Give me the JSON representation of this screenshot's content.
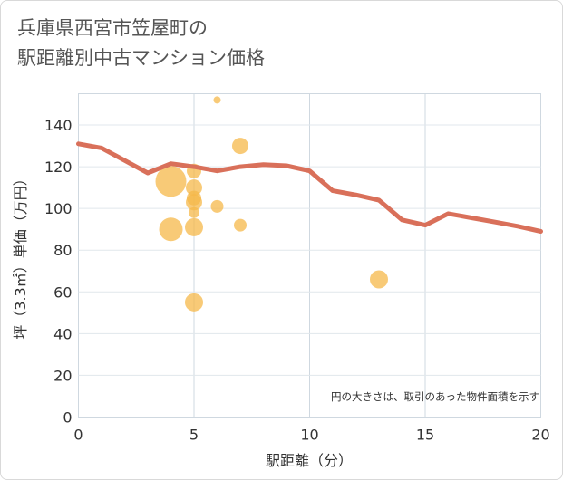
{
  "title_line1": "兵庫県西宮市笠屋町の",
  "title_line2": "駅距離別中古マンション価格",
  "chart_data": {
    "type": "scatter",
    "title": "兵庫県西宮市笠屋町の駅距離別中古マンション価格",
    "xlabel": "駅距離（分）",
    "ylabel": "坪（3.3㎡）単価（万円）",
    "xlim": [
      0,
      20
    ],
    "ylim": [
      0,
      155
    ],
    "xticks": [
      0,
      5,
      10,
      15,
      20
    ],
    "yticks": [
      0,
      20,
      40,
      60,
      80,
      100,
      120,
      140
    ],
    "grid": true,
    "note": "円の大きさは、取引のあった物件面積を示す",
    "colors": {
      "bubble": "#f5b84a",
      "line": "#d9705a"
    },
    "points": [
      {
        "x": 6,
        "y": 152,
        "size": 4
      },
      {
        "x": 7,
        "y": 130,
        "size": 9
      },
      {
        "x": 5,
        "y": 118,
        "size": 8
      },
      {
        "x": 4,
        "y": 113,
        "size": 17
      },
      {
        "x": 5,
        "y": 110,
        "size": 9
      },
      {
        "x": 5,
        "y": 105,
        "size": 8
      },
      {
        "x": 5,
        "y": 103,
        "size": 9
      },
      {
        "x": 6,
        "y": 101,
        "size": 7
      },
      {
        "x": 5,
        "y": 98,
        "size": 6
      },
      {
        "x": 7,
        "y": 92,
        "size": 7
      },
      {
        "x": 5,
        "y": 91,
        "size": 10
      },
      {
        "x": 4,
        "y": 90,
        "size": 13
      },
      {
        "x": 13,
        "y": 66,
        "size": 10
      },
      {
        "x": 5,
        "y": 55,
        "size": 10
      }
    ],
    "trend": {
      "name": "average",
      "x": [
        0,
        1,
        2,
        3,
        4,
        5,
        6,
        7,
        8,
        9,
        10,
        11,
        12,
        13,
        14,
        15,
        16,
        17,
        18,
        19,
        20
      ],
      "y": [
        131,
        129,
        123,
        117,
        121.5,
        120,
        118,
        120,
        121,
        120.5,
        118,
        108.5,
        106.5,
        104,
        94.5,
        92,
        97.5,
        95.5,
        93.5,
        91.5,
        89
      ]
    }
  }
}
